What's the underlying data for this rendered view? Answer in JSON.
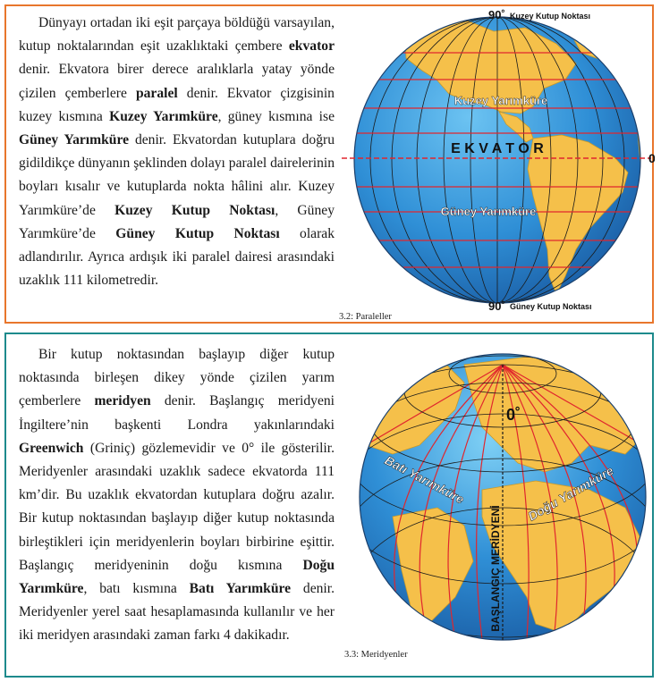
{
  "section1": {
    "paragraph": [
      {
        "t": "Dünyayı ortadan iki eşit parçaya böldüğü varsayılan, kutup noktalarından eşit uzaklıktaki çembere "
      },
      {
        "t": "ekvator",
        "b": true
      },
      {
        "t": " denir. Ekvatora birer derece aralıklarla yatay yönde çizilen çemberlere "
      },
      {
        "t": "paralel",
        "b": true
      },
      {
        "t": " denir. Ekvator çizgisinin kuzey kısmına "
      },
      {
        "t": "Kuzey Yarımküre",
        "b": true
      },
      {
        "t": ", güney kısmına ise "
      },
      {
        "t": "Güney Yarımküre",
        "b": true
      },
      {
        "t": " denir. Ekvatordan kutuplara doğru gidildikçe dünyanın şeklinden dolayı paralel dairelerinin boyları kısalır ve kutuplarda nokta hâlini alır. Kuzey Yarımküre’de "
      },
      {
        "t": "Kuzey Kutup Noktası",
        "b": true
      },
      {
        "t": ", Güney Yarımküre’de "
      },
      {
        "t": "Güney Kutup Noktası",
        "b": true
      },
      {
        "t": " olarak adlandırılır. Ayrıca ardışık iki paralel dairesi arasındaki uzaklık 111 kilometredir."
      }
    ],
    "figure": {
      "top_label": "90˚",
      "top_text": "Kuzey Kutup Noktası",
      "bottom_label": "90˚",
      "bottom_text": "Güney Kutup Noktası",
      "north_label": "Kuzey Yarımküre",
      "south_label": "Güney Yarımküre",
      "equator_label": "E K V A T O R",
      "zero_label": "0˚"
    },
    "caption": "3.2: Paraleller"
  },
  "section2": {
    "paragraph": [
      {
        "t": "Bir kutup noktasından başlayıp diğer kutup noktasında birleşen dikey yönde çizilen yarım çemberlere "
      },
      {
        "t": "meridyen",
        "b": true
      },
      {
        "t": " denir. Başlangıç meridyeni İngiltere’nin başkenti Londra yakınlarındaki "
      },
      {
        "t": "Greenwich",
        "b": true
      },
      {
        "t": " (Griniç) gözlemevidir ve 0° ile gösterilir. Meridyenler arasındaki uzaklık sadece ekvatorda 111 km’dir. Bu uzaklık  ekvatordan kutuplara doğru azalır. Bir kutup noktasından başlayıp diğer kutup noktasında birleştikleri için meridyenlerin boyları birbirine eşittir. Başlangıç meridyeninin doğu kısmına "
      },
      {
        "t": "Doğu Yarımküre",
        "b": true
      },
      {
        "t": ", batı kısmına "
      },
      {
        "t": "Batı Yarımküre",
        "b": true
      },
      {
        "t": " denir. Meridyenler yerel saat hesaplamasında kullanılır ve her iki meridyen arasındaki zaman farkı 4 dakikadır."
      }
    ],
    "figure": {
      "zero_label": "0˚",
      "meridian_label": "BAŞLANGIÇ MERİDYENİ",
      "west_label": "Batı Yarımküre",
      "east_label": "Doğu Yarımküre"
    },
    "caption": "3.3: Meridyenler"
  },
  "colors": {
    "box1_border": "#e8762c",
    "box2_border": "#1d8a8c",
    "ocean": "#2f8fd6",
    "land": "#f5c04a",
    "grid_red": "#e0262e"
  }
}
